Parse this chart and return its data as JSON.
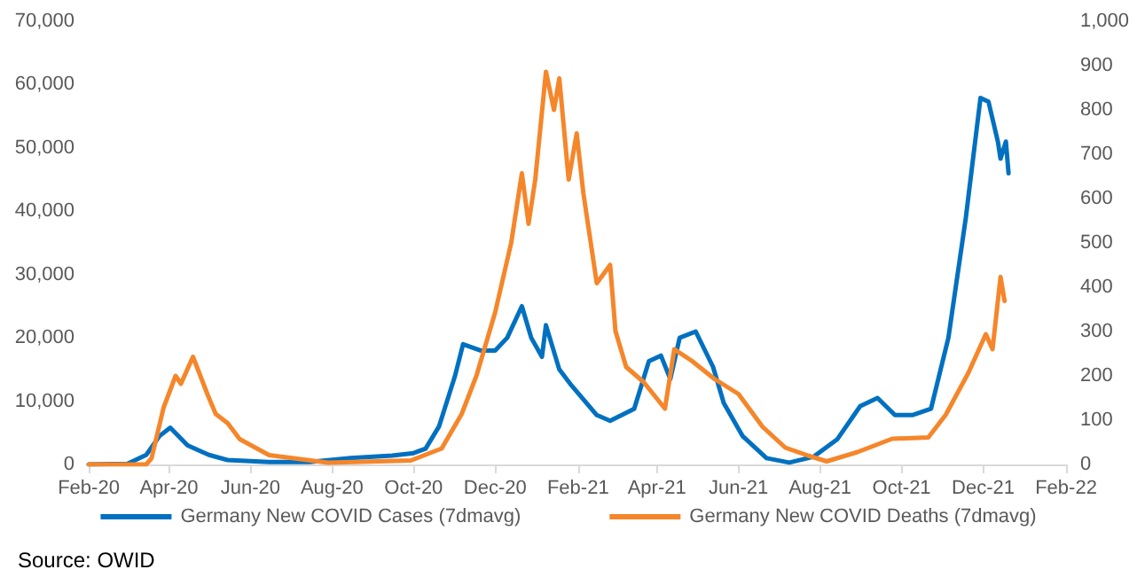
{
  "chart_data": {
    "type": "line",
    "series": [
      {
        "name": "Germany New COVID Cases (7dmavg)",
        "color": "#0070c0",
        "x": [
          "2020-02-01",
          "2020-03-01",
          "2020-03-15",
          "2020-03-25",
          "2020-04-02",
          "2020-04-15",
          "2020-05-01",
          "2020-05-15",
          "2020-06-15",
          "2020-07-15",
          "2020-08-15",
          "2020-09-15",
          "2020-10-01",
          "2020-10-10",
          "2020-10-20",
          "2020-11-01",
          "2020-11-07",
          "2020-11-20",
          "2020-12-01",
          "2020-12-10",
          "2020-12-21",
          "2020-12-28",
          "2021-01-05",
          "2021-01-08",
          "2021-01-18",
          "2021-01-27",
          "2021-02-15",
          "2021-02-25",
          "2021-03-15",
          "2021-03-26",
          "2021-04-04",
          "2021-04-11",
          "2021-04-18",
          "2021-04-30",
          "2021-05-13",
          "2021-05-21",
          "2021-06-04",
          "2021-06-22",
          "2021-07-09",
          "2021-07-27",
          "2021-08-14",
          "2021-08-31",
          "2021-09-13",
          "2021-09-26",
          "2021-10-09",
          "2021-10-23",
          "2021-11-05",
          "2021-11-18",
          "2021-11-29",
          "2021-12-05",
          "2021-12-12",
          "2021-12-14",
          "2021-12-18",
          "2021-12-20"
        ],
        "values": [
          0,
          100,
          1500,
          4500,
          5800,
          3000,
          1500,
          700,
          400,
          400,
          1000,
          1400,
          1800,
          2500,
          6000,
          14000,
          19000,
          18000,
          18000,
          20000,
          25000,
          20000,
          17000,
          22000,
          15000,
          12500,
          7800,
          6900,
          8800,
          16300,
          17200,
          13500,
          20000,
          21000,
          15400,
          9700,
          4500,
          1000,
          300,
          1200,
          4000,
          9200,
          10500,
          7800,
          7800,
          8800,
          20000,
          38900,
          57900,
          57300,
          51000,
          48300,
          51000,
          46000
        ]
      },
      {
        "name": "Germany New COVID Deaths (7dmavg)",
        "color": "#f5862a",
        "axis": "y2",
        "x": [
          "2020-02-01",
          "2020-03-15",
          "2020-03-19",
          "2020-03-28",
          "2020-04-06",
          "2020-04-10",
          "2020-04-19",
          "2020-04-30",
          "2020-05-06",
          "2020-05-15",
          "2020-05-24",
          "2020-06-15",
          "2020-07-29",
          "2020-09-29",
          "2020-10-22",
          "2020-11-06",
          "2020-11-17",
          "2020-12-01",
          "2020-12-13",
          "2020-12-21",
          "2020-12-26",
          "2020-12-31",
          "2021-01-08",
          "2021-01-14",
          "2021-01-18",
          "2021-01-25",
          "2021-01-31",
          "2021-02-05",
          "2021-02-15",
          "2021-02-25",
          "2021-03-01",
          "2021-03-09",
          "2021-03-22",
          "2021-04-07",
          "2021-04-14",
          "2021-04-27",
          "2021-05-14",
          "2021-06-01",
          "2021-06-19",
          "2021-07-06",
          "2021-07-23",
          "2021-08-06",
          "2021-08-29",
          "2021-09-24",
          "2021-10-21",
          "2021-11-03",
          "2021-11-20",
          "2021-12-03",
          "2021-12-08",
          "2021-12-14",
          "2021-12-17"
        ],
        "values": [
          0,
          0,
          14,
          128,
          200,
          182,
          243,
          157,
          114,
          93,
          57,
          21,
          4,
          9,
          36,
          114,
          200,
          343,
          500,
          657,
          543,
          643,
          886,
          800,
          871,
          643,
          747,
          612,
          409,
          450,
          301,
          220,
          186,
          126,
          260,
          234,
          193,
          159,
          85,
          38,
          20,
          7,
          28,
          58,
          61,
          112,
          207,
          294,
          260,
          423,
          369
        ]
      }
    ],
    "xlim": [
      "2020-02-01",
      "2022-02-01"
    ],
    "xticks": [
      {
        "value": "2020-02-01",
        "label": "Feb-20"
      },
      {
        "value": "2020-04-01",
        "label": "Apr-20"
      },
      {
        "value": "2020-06-01",
        "label": "Jun-20"
      },
      {
        "value": "2020-08-01",
        "label": "Aug-20"
      },
      {
        "value": "2020-10-01",
        "label": "Oct-20"
      },
      {
        "value": "2020-12-01",
        "label": "Dec-20"
      },
      {
        "value": "2021-02-01",
        "label": "Feb-21"
      },
      {
        "value": "2021-04-01",
        "label": "Apr-21"
      },
      {
        "value": "2021-06-01",
        "label": "Jun-21"
      },
      {
        "value": "2021-08-01",
        "label": "Aug-21"
      },
      {
        "value": "2021-10-01",
        "label": "Oct-21"
      },
      {
        "value": "2021-12-01",
        "label": "Dec-21"
      },
      {
        "value": "2022-02-01",
        "label": "Feb-22"
      }
    ],
    "ylim": [
      0,
      70000
    ],
    "yticks": [
      0,
      {
        "value": 10000,
        "label": "10,000"
      },
      {
        "value": 20000,
        "label": "20,000"
      },
      {
        "value": 30000,
        "label": "30,000"
      },
      {
        "value": 40000,
        "label": "40,000"
      },
      {
        "value": 50000,
        "label": "50,000"
      },
      {
        "value": 60000,
        "label": "60,000"
      },
      {
        "value": 70000,
        "label": "70,000"
      }
    ],
    "y2lim": [
      0,
      1000
    ],
    "y2ticks": [
      0,
      100,
      200,
      300,
      400,
      500,
      600,
      700,
      800,
      900,
      {
        "value": 1000,
        "label": "1,000"
      }
    ],
    "annotations": [
      "Source: OWID"
    ],
    "legend": "bottom",
    "grid": false,
    "marker": "none",
    "line_style": "solid"
  }
}
